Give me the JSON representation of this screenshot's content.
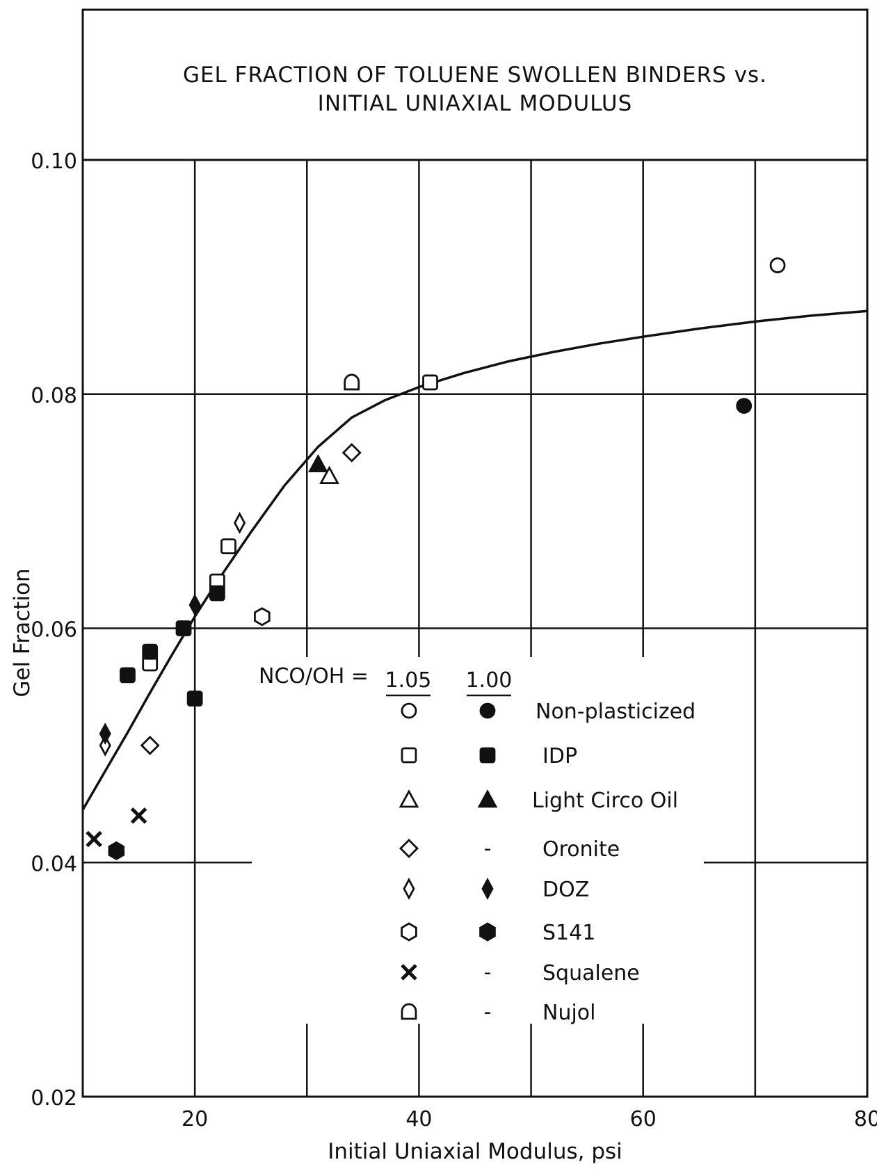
{
  "chart_data": {
    "type": "scatter",
    "title_lines": [
      "GEL FRACTION OF TOLUENE SWOLLEN BINDERS vs.",
      "INITIAL UNIAXIAL MODULUS"
    ],
    "xlabel": "Initial Uniaxial Modulus, psi",
    "ylabel": "Gel Fraction",
    "xlim": [
      10,
      80
    ],
    "ylim": [
      0.02,
      0.1
    ],
    "x_ticks": [
      20,
      40,
      60,
      80
    ],
    "x_tick_labels": [
      "20",
      "40",
      "60",
      "80"
    ],
    "y_ticks": [
      0.02,
      0.04,
      0.06,
      0.08,
      0.1
    ],
    "y_tick_labels": [
      "0.02",
      "0.04",
      "0.06",
      "0.08",
      "0.10"
    ],
    "grid": true,
    "legend": {
      "header": "NCO/OH =",
      "col1_label": "1.05",
      "col2_label": "1.00",
      "placeholder": "-",
      "entries": [
        {
          "name": "Non-plasticized",
          "open_marker": "circle",
          "filled_marker": "circle"
        },
        {
          "name": "IDP",
          "open_marker": "square",
          "filled_marker": "square"
        },
        {
          "name": "Light Circo Oil",
          "open_marker": "triangle",
          "filled_marker": "triangle"
        },
        {
          "name": "Oronite",
          "open_marker": "diamond",
          "filled_marker": null
        },
        {
          "name": "DOZ",
          "open_marker": "thin-diamond",
          "filled_marker": "thin-diamond"
        },
        {
          "name": "S141",
          "open_marker": "hexagon",
          "filled_marker": "hexagon"
        },
        {
          "name": "Squalene",
          "open_marker": "cross",
          "filled_marker": null
        },
        {
          "name": "Nujol",
          "open_marker": "dome",
          "filled_marker": null
        }
      ]
    },
    "series": [
      {
        "marker": "circle",
        "filled": false,
        "points": [
          [
            72,
            0.091
          ]
        ]
      },
      {
        "marker": "circle",
        "filled": true,
        "points": [
          [
            69,
            0.079
          ]
        ]
      },
      {
        "marker": "square",
        "filled": false,
        "points": [
          [
            41,
            0.081
          ],
          [
            23,
            0.067
          ],
          [
            22,
            0.064
          ],
          [
            16,
            0.057
          ]
        ]
      },
      {
        "marker": "square",
        "filled": true,
        "points": [
          [
            22,
            0.063
          ],
          [
            19,
            0.06
          ],
          [
            16,
            0.058
          ],
          [
            14,
            0.056
          ],
          [
            20,
            0.054
          ]
        ]
      },
      {
        "marker": "triangle",
        "filled": false,
        "points": [
          [
            32,
            0.073
          ]
        ]
      },
      {
        "marker": "triangle",
        "filled": true,
        "points": [
          [
            31,
            0.074
          ]
        ]
      },
      {
        "marker": "diamond",
        "filled": false,
        "points": [
          [
            34,
            0.075
          ],
          [
            16,
            0.05
          ]
        ]
      },
      {
        "marker": "thin-diamond",
        "filled": false,
        "points": [
          [
            24,
            0.069
          ],
          [
            12,
            0.05
          ]
        ]
      },
      {
        "marker": "thin-diamond",
        "filled": true,
        "points": [
          [
            20,
            0.062
          ],
          [
            12,
            0.051
          ]
        ]
      },
      {
        "marker": "hexagon",
        "filled": false,
        "points": [
          [
            26,
            0.061
          ]
        ]
      },
      {
        "marker": "hexagon",
        "filled": true,
        "points": [
          [
            13,
            0.041
          ]
        ]
      },
      {
        "marker": "cross",
        "filled": true,
        "points": [
          [
            11,
            0.042
          ],
          [
            15,
            0.044
          ]
        ]
      },
      {
        "marker": "dome",
        "filled": false,
        "points": [
          [
            34,
            0.081
          ]
        ]
      }
    ],
    "fit_curve": {
      "x": [
        10,
        12,
        14,
        16,
        18,
        20,
        22,
        25,
        28,
        31,
        34,
        37,
        40,
        44,
        48,
        52,
        56,
        60,
        65,
        70,
        75,
        80
      ],
      "y": [
        0.0445,
        0.0478,
        0.0511,
        0.0545,
        0.0578,
        0.061,
        0.064,
        0.0682,
        0.0722,
        0.0755,
        0.078,
        0.0795,
        0.0806,
        0.0818,
        0.0828,
        0.0836,
        0.0843,
        0.0849,
        0.0856,
        0.0862,
        0.0867,
        0.0871
      ]
    }
  }
}
